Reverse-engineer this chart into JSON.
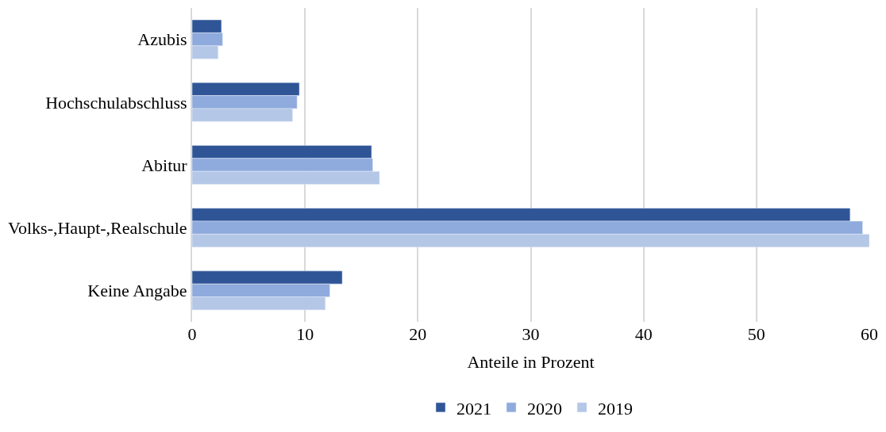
{
  "chart_data": {
    "type": "bar",
    "orientation": "horizontal",
    "xlabel": "Anteile in Prozent",
    "categories": [
      "Azubis",
      "Hochschulabschluss",
      "Abitur",
      "Volks-,Haupt-,Realschule",
      "Keine Angabe"
    ],
    "series": [
      {
        "name": "2021",
        "color": "#2f5597",
        "values": [
          2.6,
          9.5,
          15.9,
          58.3,
          13.3
        ]
      },
      {
        "name": "2020",
        "color": "#8faadc",
        "values": [
          2.7,
          9.3,
          16.0,
          59.4,
          12.2
        ]
      },
      {
        "name": "2019",
        "color": "#b4c7e7",
        "values": [
          2.3,
          8.9,
          16.6,
          60.0,
          11.8
        ]
      }
    ],
    "xlim": [
      0,
      60
    ],
    "xticks": [
      0,
      10,
      20,
      30,
      40,
      50,
      60
    ],
    "grid": "x",
    "legend": "bottom"
  }
}
